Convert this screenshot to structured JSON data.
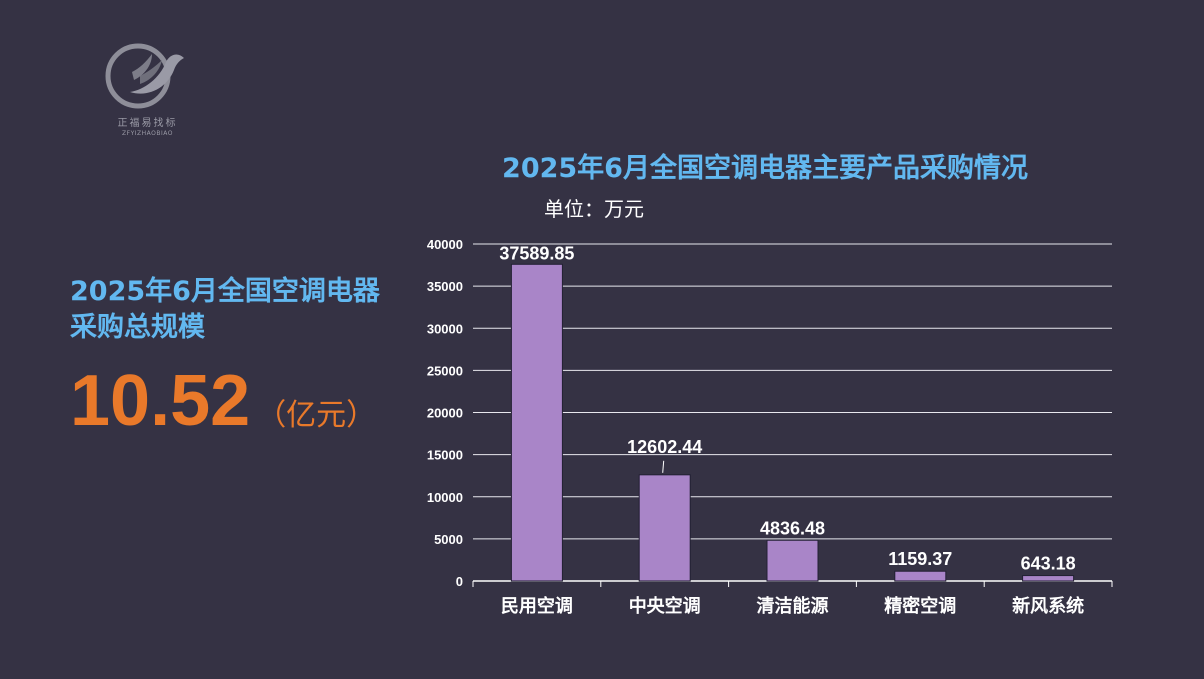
{
  "logo": {
    "icon": "eagle-logo-icon",
    "name_cn": "正福易找标",
    "name_en": "ZFYIZHAOBIAO"
  },
  "left_panel": {
    "title_line1": "2025年6月全国空调电器",
    "title_line2": "采购总规模",
    "total_value": "10.52",
    "total_unit": "（亿元）"
  },
  "colors": {
    "background": "#353244",
    "title": "#62b8f0",
    "accent": "#e9792a",
    "bar": "#a985c8"
  },
  "chart_data": {
    "type": "bar",
    "title": "2025年6月全国空调电器主要产品采购情况",
    "unit_label": "单位：万元",
    "categories": [
      "民用空调",
      "中央空调",
      "清洁能源",
      "精密空调",
      "新风系统"
    ],
    "values": [
      37589.85,
      12602.44,
      4836.48,
      1159.37,
      643.18
    ],
    "value_labels": [
      "37589.85",
      "12602.44",
      "4836.48",
      "1159.37",
      "643.18"
    ],
    "y_ticks": [
      "0",
      "5000",
      "10000",
      "15000",
      "20000",
      "25000",
      "30000",
      "35000",
      "40000"
    ],
    "ylim": [
      0,
      40000
    ],
    "grid": true,
    "legend": "none"
  }
}
